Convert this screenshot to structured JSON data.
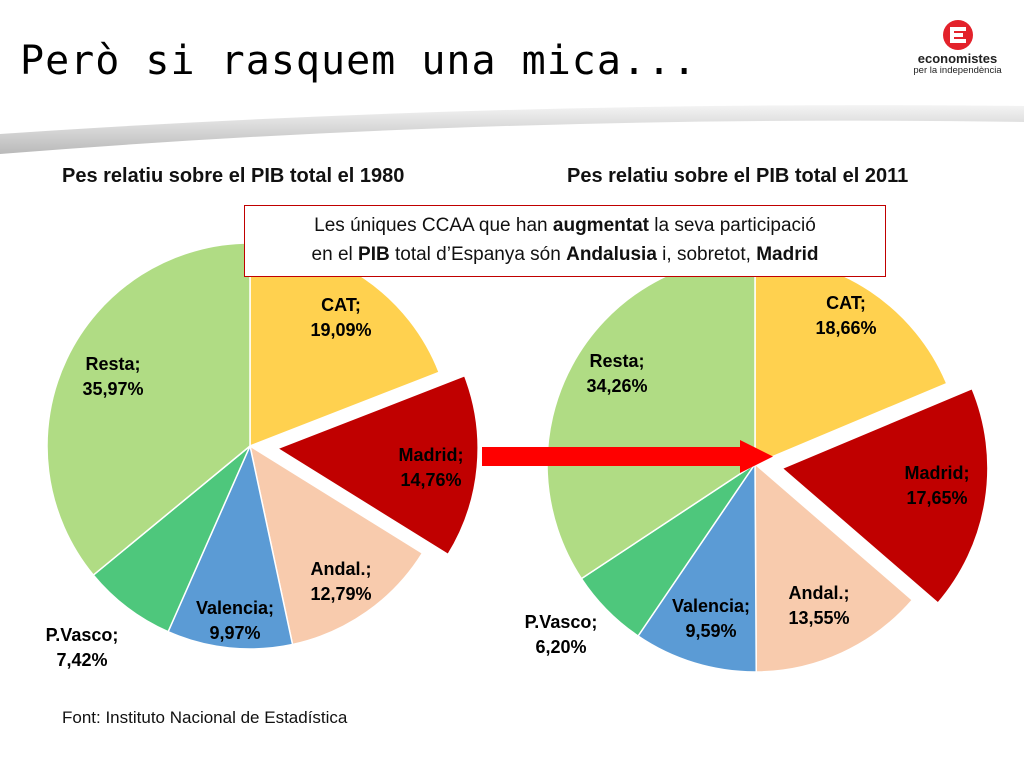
{
  "slide": {
    "title": "Però si rasquem una mica...",
    "source": "Font: Instituto Nacional de Estadística",
    "logo": {
      "name": "economistes",
      "tagline": "per la independència"
    }
  },
  "callout": {
    "t1": "Les úniques CCAA que han ",
    "b1": "augmentat",
    "t2": " la seva participació",
    "t3": "en el ",
    "b2": "PIB",
    "t4": " total d’Espanya són ",
    "b3": "Andalusia",
    "t5": " i, sobretot, ",
    "b4": "Madrid"
  },
  "chart_data": [
    {
      "type": "pie",
      "title": "Pes relatiu sobre el PIB total el 1980",
      "slices": [
        {
          "label": "CAT",
          "value": 19.09,
          "value_label": "19,09%",
          "color": "#ffd14f",
          "label_color": "#000000"
        },
        {
          "label": "Madrid",
          "value": 14.76,
          "value_label": "14,76%",
          "color": "#c00000",
          "label_color": "#000000",
          "exploded": true
        },
        {
          "label": "Andal.",
          "value": 12.79,
          "value_label": "12,79%",
          "color": "#f8cbad",
          "label_color": "#000000"
        },
        {
          "label": "Valencia",
          "value": 9.97,
          "value_label": "9,97%",
          "color": "#5b9bd5",
          "label_color": "#000000"
        },
        {
          "label": "P.Vasco",
          "value": 7.42,
          "value_label": "7,42%",
          "color": "#4ec77c",
          "label_color": "#000000"
        },
        {
          "label": "Resta",
          "value": 35.97,
          "value_label": "35,97%",
          "color": "#b0dc84",
          "label_color": "#000000"
        }
      ]
    },
    {
      "type": "pie",
      "title": "Pes relatiu sobre el PIB total el 2011",
      "slices": [
        {
          "label": "CAT",
          "value": 18.66,
          "value_label": "18,66%",
          "color": "#ffd14f",
          "label_color": "#000000"
        },
        {
          "label": "Madrid",
          "value": 17.65,
          "value_label": "17,65%",
          "color": "#c00000",
          "label_color": "#000000",
          "exploded": true
        },
        {
          "label": "Andal.",
          "value": 13.55,
          "value_label": "13,55%",
          "color": "#f8cbad",
          "label_color": "#000000"
        },
        {
          "label": "Valencia",
          "value": 9.59,
          "value_label": "9,59%",
          "color": "#5b9bd5",
          "label_color": "#000000"
        },
        {
          "label": "P.Vasco",
          "value": 6.2,
          "value_label": "6,20%",
          "color": "#4ec77c",
          "label_color": "#000000"
        },
        {
          "label": "Resta",
          "value": 34.26,
          "value_label": "34,26%",
          "color": "#b0dc84",
          "label_color": "#000000"
        }
      ]
    }
  ],
  "colors": {
    "arrow": "#ff0000",
    "callout_border": "#c00000"
  }
}
